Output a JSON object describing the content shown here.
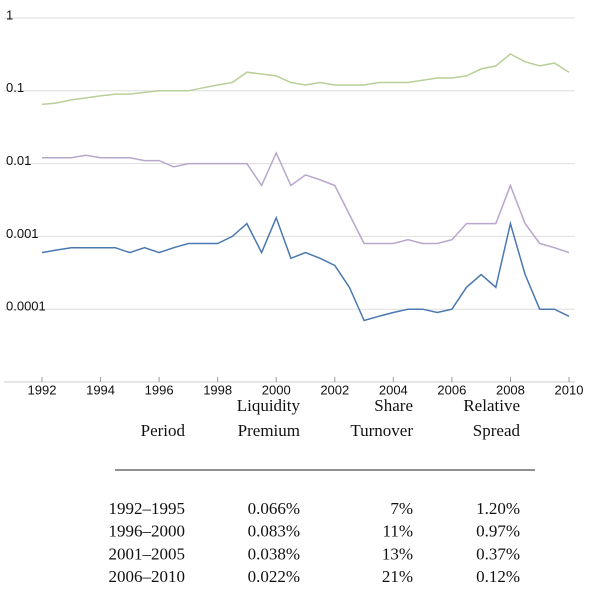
{
  "chart_data": {
    "type": "line",
    "yscale": "log",
    "grid": true,
    "x": [
      1992,
      1992.5,
      1993,
      1993.5,
      1994,
      1994.5,
      1995,
      1995.5,
      1996,
      1996.5,
      1997,
      1997.5,
      1998,
      1998.5,
      1999,
      1999.5,
      2000,
      2000.5,
      2001,
      2001.5,
      2002,
      2002.5,
      2003,
      2003.5,
      2004,
      2004.5,
      2005,
      2005.5,
      2006,
      2006.5,
      2007,
      2007.5,
      2008,
      2008.5,
      2009,
      2009.5,
      2010
    ],
    "xlim": [
      1992,
      2010
    ],
    "xticks": [
      1992,
      1994,
      1996,
      1998,
      2000,
      2002,
      2004,
      2006,
      2008,
      2010
    ],
    "ylim": [
      1e-05,
      1
    ],
    "yticks": [
      1,
      0.1,
      0.01,
      0.001,
      0.0001
    ],
    "series": [
      {
        "color": "#b9cf98",
        "values": [
          0.065,
          0.068,
          0.075,
          0.08,
          0.085,
          0.09,
          0.09,
          0.095,
          0.1,
          0.1,
          0.1,
          0.11,
          0.12,
          0.13,
          0.18,
          0.17,
          0.16,
          0.13,
          0.12,
          0.13,
          0.12,
          0.12,
          0.12,
          0.13,
          0.13,
          0.13,
          0.14,
          0.15,
          0.15,
          0.16,
          0.2,
          0.22,
          0.32,
          0.25,
          0.22,
          0.24,
          0.18
        ]
      },
      {
        "color": "#b8a6cb",
        "values": [
          0.012,
          0.012,
          0.012,
          0.013,
          0.012,
          0.012,
          0.012,
          0.011,
          0.011,
          0.009,
          0.01,
          0.01,
          0.01,
          0.01,
          0.01,
          0.005,
          0.014,
          0.005,
          0.007,
          0.006,
          0.005,
          0.002,
          0.0008,
          0.0008,
          0.0008,
          0.0009,
          0.0008,
          0.0008,
          0.0009,
          0.0015,
          0.0015,
          0.0015,
          0.005,
          0.0015,
          0.0008,
          0.0007,
          0.0006
        ]
      },
      {
        "color": "#4a78b0",
        "values": [
          0.0006,
          0.00065,
          0.0007,
          0.0007,
          0.0007,
          0.0007,
          0.0006,
          0.0007,
          0.0006,
          0.0007,
          0.0008,
          0.0008,
          0.0008,
          0.001,
          0.0015,
          0.0006,
          0.0018,
          0.0005,
          0.0006,
          0.0005,
          0.0004,
          0.0002,
          7e-05,
          8e-05,
          9e-05,
          0.0001,
          0.0001,
          9e-05,
          0.0001,
          0.0002,
          0.0003,
          0.0002,
          0.0015,
          0.0003,
          0.0001,
          0.0001,
          8e-05
        ]
      }
    ]
  },
  "table": {
    "columns": [
      [
        "Period"
      ],
      [
        "Liquidity",
        "Premium"
      ],
      [
        "Share",
        "Turnover"
      ],
      [
        "Relative",
        "Spread"
      ]
    ],
    "rows": [
      [
        "1992–1995",
        "0.066%",
        "7%",
        "1.20%"
      ],
      [
        "1996–2000",
        "0.083%",
        "11%",
        "0.97%"
      ],
      [
        "2001–2005",
        "0.038%",
        "13%",
        "0.37%"
      ],
      [
        "2006–2010",
        "0.022%",
        "21%",
        "0.12%"
      ]
    ]
  }
}
